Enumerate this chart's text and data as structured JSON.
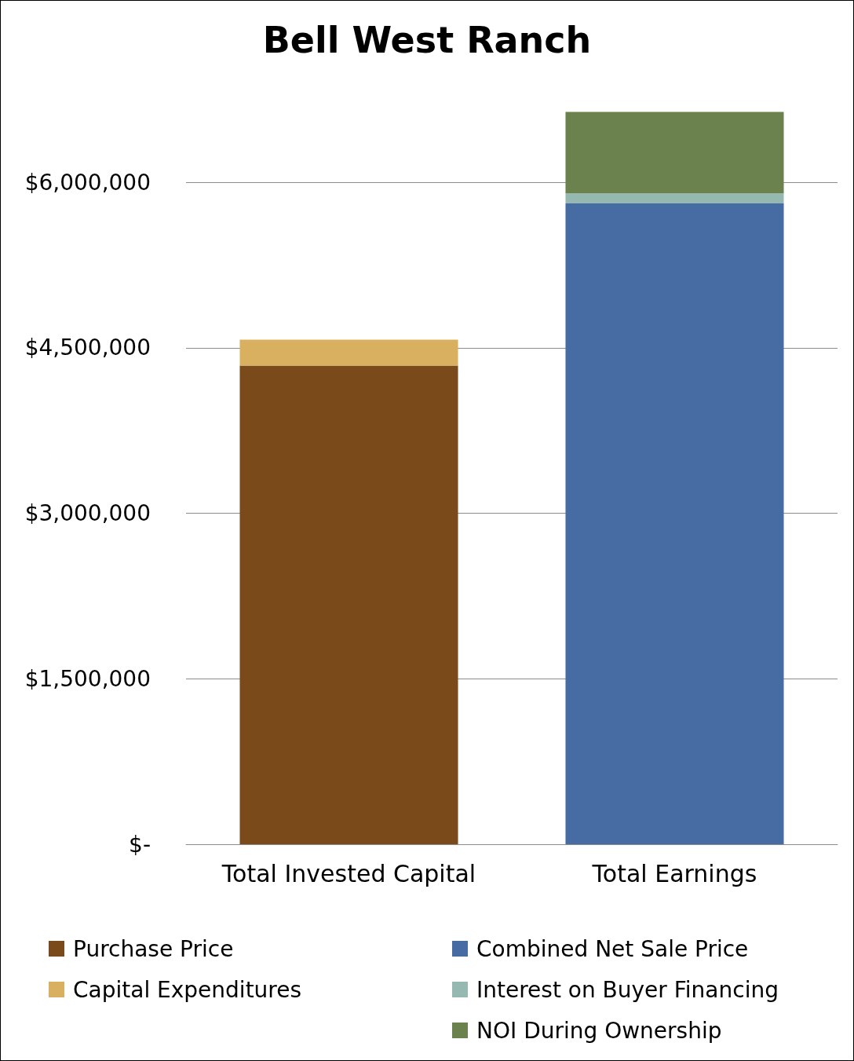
{
  "chart_data": {
    "type": "bar",
    "title": "Bell West Ranch",
    "stacked": true,
    "categories": [
      "Total Invested Capital",
      "Total Earnings"
    ],
    "series": [
      {
        "name": "Purchase Price",
        "color": "#7b4a1a",
        "values": [
          4340000,
          null
        ]
      },
      {
        "name": "Capital Expenditures",
        "color": "#d9b060",
        "values": [
          235000,
          null
        ]
      },
      {
        "name": "Combined Net Sale Price",
        "color": "#476ba3",
        "values": [
          null,
          5810000
        ]
      },
      {
        "name": "Interest on Buyer Financing",
        "color": "#95b9b0",
        "values": [
          null,
          90000
        ]
      },
      {
        "name": "NOI During Ownership",
        "color": "#6b824f",
        "values": [
          null,
          740000
        ]
      }
    ],
    "ylim": [
      0,
      6650000
    ],
    "yticks": [
      {
        "value": 0,
        "label": "$-"
      },
      {
        "value": 1500000,
        "label": "$1,500,000"
      },
      {
        "value": 3000000,
        "label": "$3,000,000"
      },
      {
        "value": 4500000,
        "label": "$4,500,000"
      },
      {
        "value": 6000000,
        "label": "$6,000,000"
      }
    ],
    "grid": "y",
    "legend": "bottom"
  }
}
